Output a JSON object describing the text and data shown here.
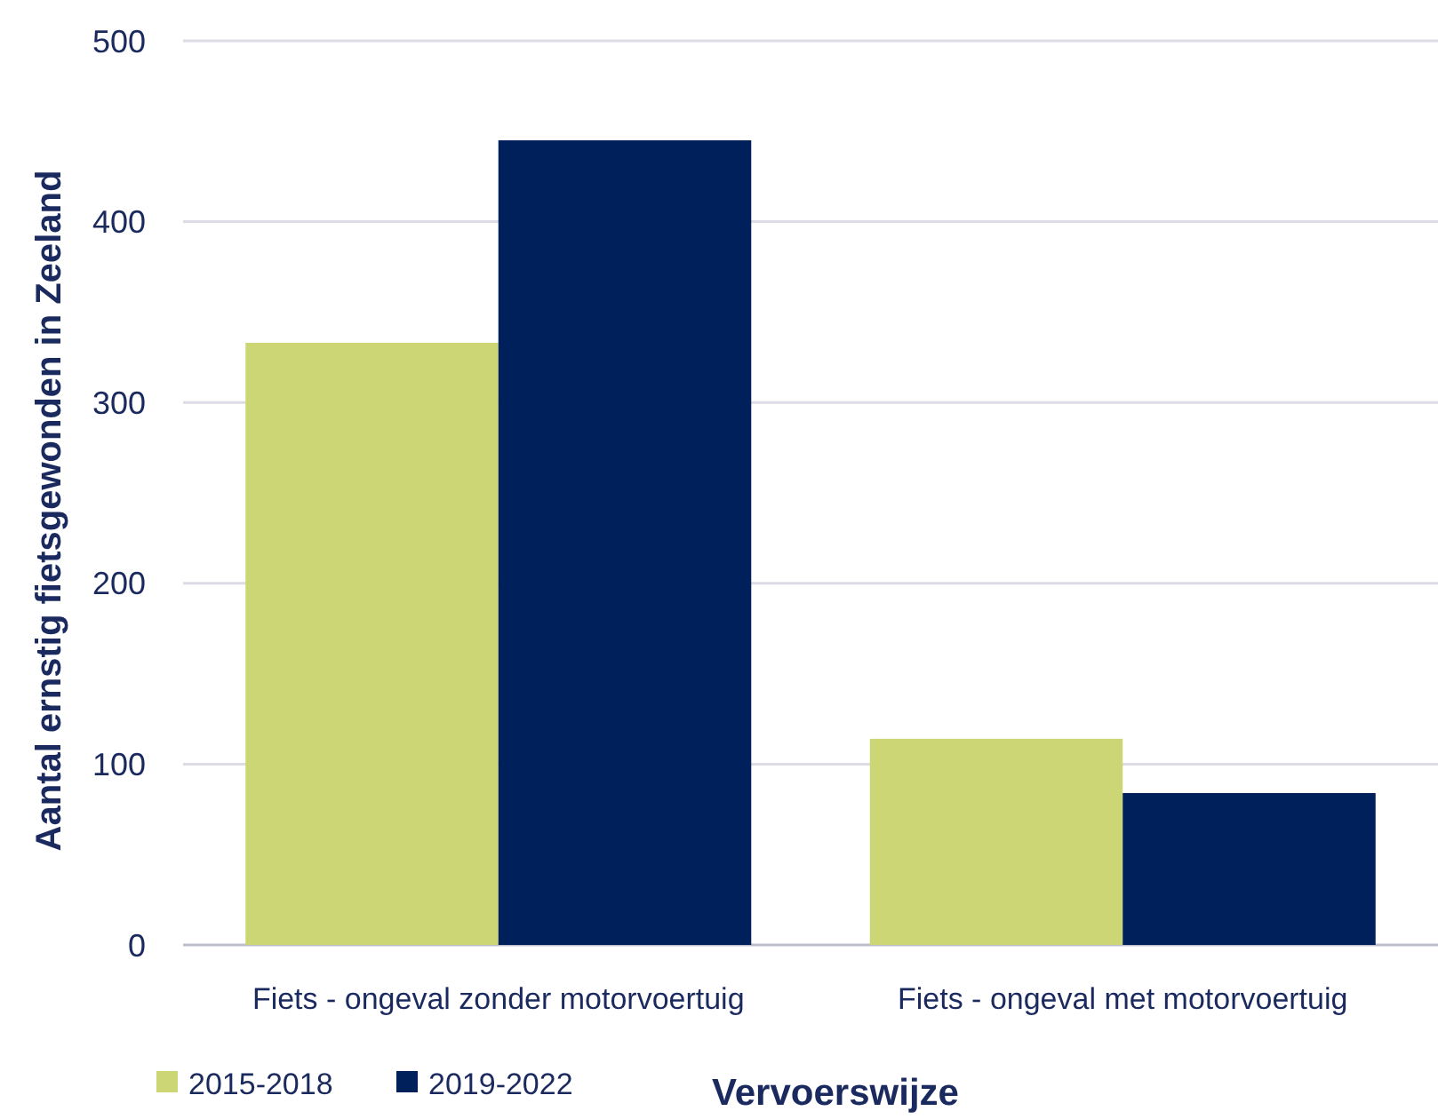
{
  "chart_data": {
    "type": "bar",
    "xlabel": "Vervoerswijze",
    "ylabel": "Aantal ernstig fietsgewonden in Zeeland",
    "categories": [
      "Fiets - ongeval zonder motorvoertuig",
      "Fiets - ongeval met motorvoertuig"
    ],
    "series": [
      {
        "name": "2015-2018",
        "color": "#cdd675",
        "values": [
          333,
          114
        ]
      },
      {
        "name": "2019-2022",
        "color": "#00205b",
        "values": [
          445,
          84
        ]
      }
    ],
    "ylim": [
      0,
      500
    ],
    "yticks": [
      0,
      100,
      200,
      300,
      400,
      500
    ],
    "grid": "y",
    "legend": "bottom left"
  }
}
